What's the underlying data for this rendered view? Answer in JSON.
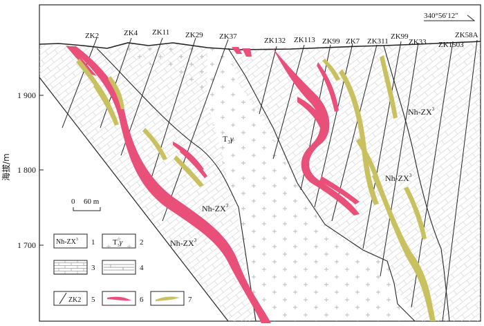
{
  "azimuth": "340°56′12″",
  "y_axis": {
    "label": "海拔/m",
    "ticks": [
      "1 900",
      "1 800",
      "1 700"
    ]
  },
  "drillholes": [
    "ZK2",
    "ZK4",
    "ZK11",
    "ZK29",
    "ZK37",
    "ZK132",
    "ZK113",
    "ZK99",
    "ZK7",
    "ZK311",
    "ZK99",
    "ZK33",
    "ZK1503",
    "ZK58A"
  ],
  "units": {
    "upper_right": {
      "text": "Nh-ZX",
      "sup": "3"
    },
    "right_middle": {
      "text": "Nh-ZX",
      "sup": "3"
    },
    "granite": {
      "text": "T",
      "sub": "3",
      "tail": "γ"
    },
    "center": {
      "text": "Nh-ZX",
      "sup": "3"
    },
    "lower_left": {
      "text": "Nh-ZX",
      "sup": "3"
    }
  },
  "scale_bar": {
    "zero": "0",
    "label": "60 m"
  },
  "legend": [
    {
      "num": "1",
      "box_text": "Nh-ZX",
      "box_sup": "3"
    },
    {
      "num": "2",
      "box_text": "T",
      "box_sub": "3",
      "box_tail": "γ"
    },
    {
      "num": "3"
    },
    {
      "num": "4"
    },
    {
      "num": "5",
      "box_text": "ZK2"
    },
    {
      "num": "6"
    },
    {
      "num": "7"
    }
  ],
  "colors": {
    "orebody_red": "#e8507a",
    "orebody_yellow": "#c9c160",
    "line": "#222222"
  }
}
